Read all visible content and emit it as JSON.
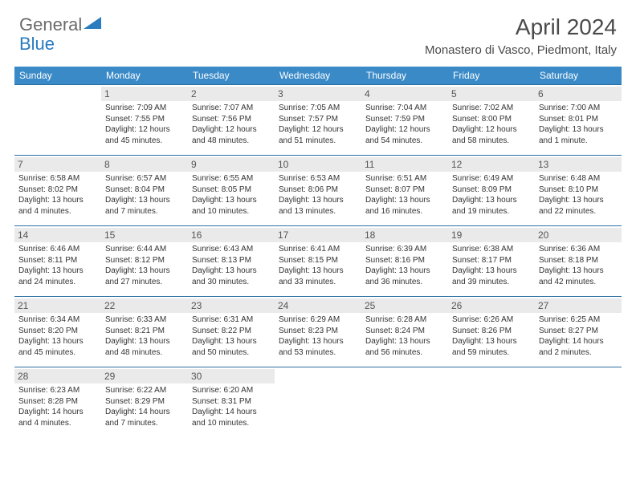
{
  "logo": {
    "text1": "General",
    "text2": "Blue"
  },
  "title": "April 2024",
  "location": "Monastero di Vasco, Piedmont, Italy",
  "header_bg": "#3a8ac7",
  "daynum_bg": "#eaeaea",
  "weekdays": [
    "Sunday",
    "Monday",
    "Tuesday",
    "Wednesday",
    "Thursday",
    "Friday",
    "Saturday"
  ],
  "weeks": [
    [
      null,
      {
        "n": "1",
        "sr": "Sunrise: 7:09 AM",
        "ss": "Sunset: 7:55 PM",
        "d1": "Daylight: 12 hours",
        "d2": "and 45 minutes."
      },
      {
        "n": "2",
        "sr": "Sunrise: 7:07 AM",
        "ss": "Sunset: 7:56 PM",
        "d1": "Daylight: 12 hours",
        "d2": "and 48 minutes."
      },
      {
        "n": "3",
        "sr": "Sunrise: 7:05 AM",
        "ss": "Sunset: 7:57 PM",
        "d1": "Daylight: 12 hours",
        "d2": "and 51 minutes."
      },
      {
        "n": "4",
        "sr": "Sunrise: 7:04 AM",
        "ss": "Sunset: 7:59 PM",
        "d1": "Daylight: 12 hours",
        "d2": "and 54 minutes."
      },
      {
        "n": "5",
        "sr": "Sunrise: 7:02 AM",
        "ss": "Sunset: 8:00 PM",
        "d1": "Daylight: 12 hours",
        "d2": "and 58 minutes."
      },
      {
        "n": "6",
        "sr": "Sunrise: 7:00 AM",
        "ss": "Sunset: 8:01 PM",
        "d1": "Daylight: 13 hours",
        "d2": "and 1 minute."
      }
    ],
    [
      {
        "n": "7",
        "sr": "Sunrise: 6:58 AM",
        "ss": "Sunset: 8:02 PM",
        "d1": "Daylight: 13 hours",
        "d2": "and 4 minutes."
      },
      {
        "n": "8",
        "sr": "Sunrise: 6:57 AM",
        "ss": "Sunset: 8:04 PM",
        "d1": "Daylight: 13 hours",
        "d2": "and 7 minutes."
      },
      {
        "n": "9",
        "sr": "Sunrise: 6:55 AM",
        "ss": "Sunset: 8:05 PM",
        "d1": "Daylight: 13 hours",
        "d2": "and 10 minutes."
      },
      {
        "n": "10",
        "sr": "Sunrise: 6:53 AM",
        "ss": "Sunset: 8:06 PM",
        "d1": "Daylight: 13 hours",
        "d2": "and 13 minutes."
      },
      {
        "n": "11",
        "sr": "Sunrise: 6:51 AM",
        "ss": "Sunset: 8:07 PM",
        "d1": "Daylight: 13 hours",
        "d2": "and 16 minutes."
      },
      {
        "n": "12",
        "sr": "Sunrise: 6:49 AM",
        "ss": "Sunset: 8:09 PM",
        "d1": "Daylight: 13 hours",
        "d2": "and 19 minutes."
      },
      {
        "n": "13",
        "sr": "Sunrise: 6:48 AM",
        "ss": "Sunset: 8:10 PM",
        "d1": "Daylight: 13 hours",
        "d2": "and 22 minutes."
      }
    ],
    [
      {
        "n": "14",
        "sr": "Sunrise: 6:46 AM",
        "ss": "Sunset: 8:11 PM",
        "d1": "Daylight: 13 hours",
        "d2": "and 24 minutes."
      },
      {
        "n": "15",
        "sr": "Sunrise: 6:44 AM",
        "ss": "Sunset: 8:12 PM",
        "d1": "Daylight: 13 hours",
        "d2": "and 27 minutes."
      },
      {
        "n": "16",
        "sr": "Sunrise: 6:43 AM",
        "ss": "Sunset: 8:13 PM",
        "d1": "Daylight: 13 hours",
        "d2": "and 30 minutes."
      },
      {
        "n": "17",
        "sr": "Sunrise: 6:41 AM",
        "ss": "Sunset: 8:15 PM",
        "d1": "Daylight: 13 hours",
        "d2": "and 33 minutes."
      },
      {
        "n": "18",
        "sr": "Sunrise: 6:39 AM",
        "ss": "Sunset: 8:16 PM",
        "d1": "Daylight: 13 hours",
        "d2": "and 36 minutes."
      },
      {
        "n": "19",
        "sr": "Sunrise: 6:38 AM",
        "ss": "Sunset: 8:17 PM",
        "d1": "Daylight: 13 hours",
        "d2": "and 39 minutes."
      },
      {
        "n": "20",
        "sr": "Sunrise: 6:36 AM",
        "ss": "Sunset: 8:18 PM",
        "d1": "Daylight: 13 hours",
        "d2": "and 42 minutes."
      }
    ],
    [
      {
        "n": "21",
        "sr": "Sunrise: 6:34 AM",
        "ss": "Sunset: 8:20 PM",
        "d1": "Daylight: 13 hours",
        "d2": "and 45 minutes."
      },
      {
        "n": "22",
        "sr": "Sunrise: 6:33 AM",
        "ss": "Sunset: 8:21 PM",
        "d1": "Daylight: 13 hours",
        "d2": "and 48 minutes."
      },
      {
        "n": "23",
        "sr": "Sunrise: 6:31 AM",
        "ss": "Sunset: 8:22 PM",
        "d1": "Daylight: 13 hours",
        "d2": "and 50 minutes."
      },
      {
        "n": "24",
        "sr": "Sunrise: 6:29 AM",
        "ss": "Sunset: 8:23 PM",
        "d1": "Daylight: 13 hours",
        "d2": "and 53 minutes."
      },
      {
        "n": "25",
        "sr": "Sunrise: 6:28 AM",
        "ss": "Sunset: 8:24 PM",
        "d1": "Daylight: 13 hours",
        "d2": "and 56 minutes."
      },
      {
        "n": "26",
        "sr": "Sunrise: 6:26 AM",
        "ss": "Sunset: 8:26 PM",
        "d1": "Daylight: 13 hours",
        "d2": "and 59 minutes."
      },
      {
        "n": "27",
        "sr": "Sunrise: 6:25 AM",
        "ss": "Sunset: 8:27 PM",
        "d1": "Daylight: 14 hours",
        "d2": "and 2 minutes."
      }
    ],
    [
      {
        "n": "28",
        "sr": "Sunrise: 6:23 AM",
        "ss": "Sunset: 8:28 PM",
        "d1": "Daylight: 14 hours",
        "d2": "and 4 minutes."
      },
      {
        "n": "29",
        "sr": "Sunrise: 6:22 AM",
        "ss": "Sunset: 8:29 PM",
        "d1": "Daylight: 14 hours",
        "d2": "and 7 minutes."
      },
      {
        "n": "30",
        "sr": "Sunrise: 6:20 AM",
        "ss": "Sunset: 8:31 PM",
        "d1": "Daylight: 14 hours",
        "d2": "and 10 minutes."
      },
      null,
      null,
      null,
      null
    ]
  ]
}
